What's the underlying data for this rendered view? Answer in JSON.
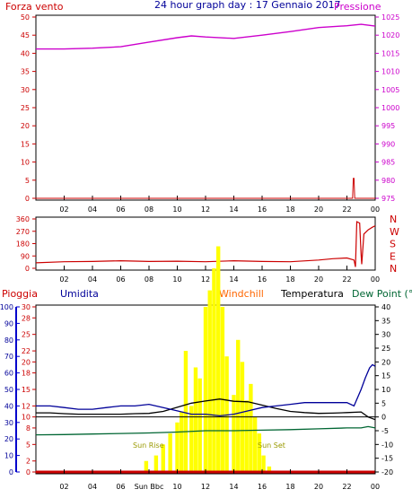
{
  "colors": {
    "wind": "#cc0000",
    "pressure": "#cc00cc",
    "title": "#000099",
    "rain": "#cc0000",
    "humidity": "#000099",
    "windchill": "#ff6600",
    "temperature": "#000000",
    "dewpoint": "#006633",
    "sun": "#ffff00",
    "axis_left_blue": "#0000cc"
  },
  "chart_data": [
    {
      "type": "line",
      "title": "24 hour graph day : 17 Gennaio 2017",
      "series": [
        {
          "name": "Forza vento",
          "axis": "left",
          "x": [
            0,
            22.4,
            22.45,
            22.5,
            22.55,
            24
          ],
          "values": [
            0,
            0,
            5.5,
            5.5,
            0,
            0
          ]
        },
        {
          "name": "Pressione",
          "axis": "right",
          "x": [
            0,
            2,
            4,
            6,
            8,
            10,
            11,
            12,
            14,
            16,
            18,
            20,
            22,
            23,
            24
          ],
          "values": [
            1016.2,
            1016.2,
            1016.4,
            1016.8,
            1018.1,
            1019.3,
            1019.8,
            1019.5,
            1019.1,
            1020.0,
            1021.0,
            1022.1,
            1022.6,
            1023.0,
            1022.5
          ]
        }
      ],
      "x_ticks": [
        "02",
        "04",
        "06",
        "08",
        "10",
        "12",
        "14",
        "16",
        "18",
        "20",
        "22",
        "00"
      ],
      "y_left": {
        "range": [
          0,
          50
        ],
        "ticks": [
          "0",
          "5",
          "10",
          "15",
          "20",
          "25",
          "30",
          "35",
          "40",
          "45",
          "50"
        ]
      },
      "y_right": {
        "range": [
          975,
          1025
        ],
        "ticks": [
          "975",
          "980",
          "985",
          "990",
          "995",
          "1000",
          "1005",
          "1010",
          "1015",
          "1020",
          "1025"
        ]
      }
    },
    {
      "type": "line",
      "series": [
        {
          "name": "Direzione vento",
          "x": [
            0,
            2,
            4,
            6,
            8,
            10,
            12,
            14,
            16,
            18,
            20,
            21,
            22,
            22.5,
            22.6,
            22.7,
            22.9,
            23.0,
            23.05,
            23.2,
            23.5,
            23.8,
            24
          ],
          "values": [
            40,
            48,
            50,
            55,
            50,
            52,
            48,
            55,
            50,
            48,
            60,
            70,
            75,
            60,
            10,
            340,
            330,
            100,
            30,
            250,
            280,
            300,
            310
          ]
        }
      ],
      "x_ticks": [
        "02",
        "04",
        "06",
        "08",
        "10",
        "12",
        "14",
        "16",
        "18",
        "20",
        "22",
        "00"
      ],
      "y_left": {
        "range": [
          0,
          360
        ],
        "ticks": [
          "0",
          "90",
          "180",
          "270",
          "360"
        ]
      },
      "compass": [
        "N",
        "W",
        "S",
        "E",
        "N"
      ]
    },
    {
      "type": "line",
      "legend": [
        "Pioggia",
        "Umidita",
        "Windchill",
        "Temperatura",
        "Dew Point (°C"
      ],
      "series": [
        {
          "name": "Temperatura",
          "axis": "right",
          "x": [
            0,
            1,
            2,
            3,
            4,
            5,
            6,
            7,
            8,
            9,
            10,
            11,
            12,
            13,
            14,
            15,
            16,
            17,
            18,
            19,
            20,
            21,
            22,
            23,
            23.5,
            24
          ],
          "values": [
            1.5,
            1.5,
            1.2,
            1.0,
            1.0,
            1.0,
            1.0,
            1.2,
            1.3,
            2.0,
            3.5,
            5.0,
            5.8,
            6.5,
            5.7,
            5.5,
            4.3,
            3.1,
            2.0,
            1.6,
            1.3,
            1.4,
            1.6,
            1.8,
            0.0,
            -1.0
          ]
        },
        {
          "name": "Umidita",
          "axis": "left",
          "x": [
            0,
            1,
            2,
            3,
            4,
            5,
            6,
            7,
            8,
            9,
            10,
            11,
            12,
            13,
            14,
            15,
            16,
            17,
            18,
            19,
            20,
            21,
            22,
            22.5,
            23,
            23.3,
            23.6,
            23.8,
            24
          ],
          "values": [
            40,
            40,
            39,
            38,
            38,
            39,
            40,
            40,
            41,
            39,
            37,
            35,
            35,
            34,
            35,
            37,
            39,
            40,
            41,
            42,
            42,
            42,
            42,
            40,
            50,
            57,
            63,
            65,
            64
          ]
        },
        {
          "name": "Dew Point (°C",
          "axis": "right",
          "x": [
            0,
            2,
            4,
            6,
            8,
            10,
            12,
            14,
            16,
            18,
            20,
            22,
            23,
            23.5,
            24
          ],
          "values": [
            -6.5,
            -6.4,
            -6.2,
            -6.0,
            -5.8,
            -5.5,
            -5.0,
            -5.0,
            -4.8,
            -4.6,
            -4.3,
            -4.0,
            -4.0,
            -3.5,
            -4.0
          ]
        },
        {
          "name": "Pioggia",
          "axis": "left",
          "x": [
            0,
            24
          ],
          "values": [
            0,
            0
          ]
        }
      ],
      "sun_bars": {
        "x": [
          7.8,
          8.5,
          9.0,
          9.5,
          10.0,
          10.3,
          10.6,
          11.0,
          11.3,
          11.6,
          12.0,
          12.3,
          12.6,
          12.9,
          13.2,
          13.5,
          14.0,
          14.3,
          14.6,
          14.9,
          15.2,
          15.5,
          15.8,
          16.1,
          16.5
        ],
        "values": [
          2,
          3,
          5,
          7,
          9,
          11,
          22,
          12,
          19,
          17,
          30,
          33,
          37,
          41,
          30,
          21,
          14,
          24,
          20,
          13,
          16,
          10,
          7,
          3,
          1
        ]
      },
      "sun_labels": [
        "Sun Rise",
        "Sun Set",
        "Sun Bbc"
      ],
      "x_ticks": [
        "02",
        "04",
        "06",
        "08",
        "10",
        "12",
        "14",
        "16",
        "18",
        "20",
        "22",
        "00"
      ],
      "y_left_outer": {
        "range": [
          0,
          100
        ],
        "ticks": [
          "0",
          "10",
          "20",
          "30",
          "40",
          "50",
          "60",
          "70",
          "80",
          "90",
          "100"
        ]
      },
      "y_left_inner": {
        "range": [
          0,
          30
        ],
        "ticks": [
          "0",
          "2",
          "5",
          "8",
          "10",
          "12",
          "15",
          "18",
          "20",
          "22",
          "25",
          "28",
          "30"
        ]
      },
      "y_right": {
        "range": [
          -20,
          40
        ],
        "ticks": [
          "-20",
          "-15",
          "-10",
          "-5",
          "0",
          "5",
          "10",
          "15",
          "20",
          "25",
          "30",
          "35",
          "40"
        ]
      }
    }
  ]
}
